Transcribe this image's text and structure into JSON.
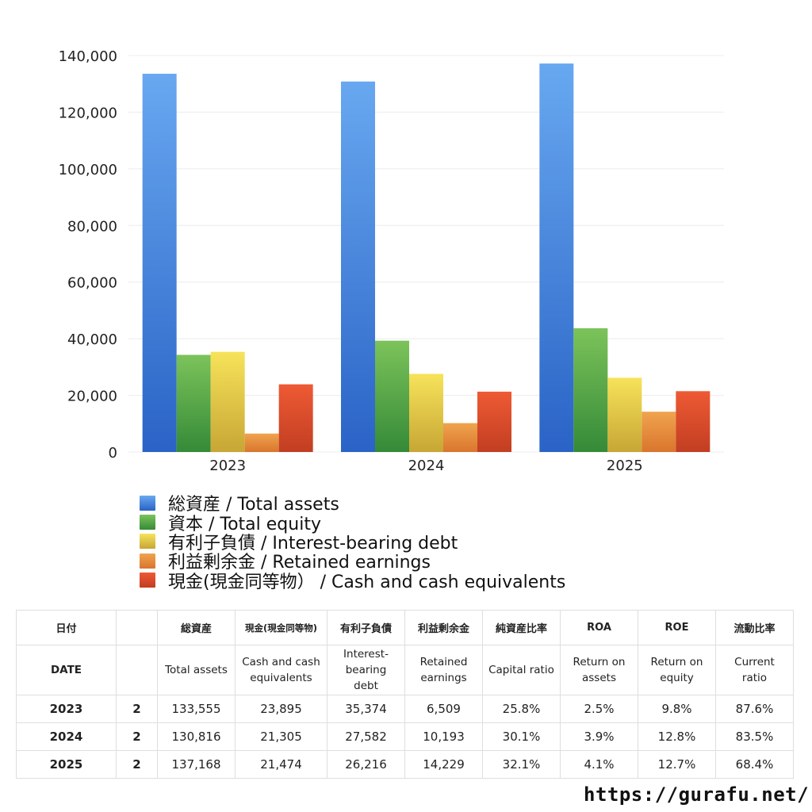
{
  "chart_data": {
    "type": "bar",
    "categories": [
      "2023",
      "2024",
      "2025"
    ],
    "ylim": [
      0,
      140000
    ],
    "yticks": [
      0,
      20000,
      40000,
      60000,
      80000,
      100000,
      120000,
      140000
    ],
    "ytick_labels": [
      "0",
      "20,000",
      "40,000",
      "60,000",
      "80,000",
      "100,000",
      "120,000",
      "140,000"
    ],
    "grid": true,
    "legend_position": "bottom",
    "series": [
      {
        "name": "総資産 / Total assets",
        "values": [
          133555,
          130816,
          137168
        ],
        "color": "#3f7fdc",
        "color_light": "#68a8f0",
        "color_dark": "#2a63c6"
      },
      {
        "name": "資本 / Total equity",
        "values": [
          34300,
          39300,
          43700
        ],
        "color": "#4ea84a",
        "color_light": "#7cc35a",
        "color_dark": "#358a38"
      },
      {
        "name": "有利子負債 / Interest-bearing debt",
        "values": [
          35374,
          27582,
          26216
        ],
        "color": "#e8c840",
        "color_light": "#f7e35a",
        "color_dark": "#c7a635"
      },
      {
        "name": "利益剰余金 / Retained earnings",
        "values": [
          6509,
          10193,
          14229
        ],
        "color": "#e68a3a",
        "color_light": "#f0a44e",
        "color_dark": "#d9752d"
      },
      {
        "name": "現金(現金同等物）  /  Cash and cash equivalents",
        "values": [
          23895,
          21305,
          21474
        ],
        "color": "#dc4a2a",
        "color_light": "#ee5a34",
        "color_dark": "#c23e22"
      }
    ]
  },
  "table": {
    "headers_jp": [
      "日付",
      "",
      "総資産",
      "現金(現金同等物)",
      "有利子負債",
      "利益剰余金",
      "純資産比率",
      "ROA",
      "ROE",
      "流動比率"
    ],
    "headers_en": [
      "DATE",
      "",
      "Total assets",
      "Cash and cash equivalents",
      "Interest-bearing debt",
      "Retained earnings",
      "Capital ratio",
      "Return on assets",
      "Return on equity",
      "Current ratio"
    ],
    "rows": [
      {
        "year": "2023",
        "q": "2",
        "total_assets": "133,555",
        "cash": "23,895",
        "debt": "35,374",
        "retained": "6,509",
        "capital_ratio": "25.8%",
        "roa": "2.5%",
        "roe": "9.8%",
        "current_ratio": "87.6%"
      },
      {
        "year": "2024",
        "q": "2",
        "total_assets": "130,816",
        "cash": "21,305",
        "debt": "27,582",
        "retained": "10,193",
        "capital_ratio": "30.1%",
        "roa": "3.9%",
        "roe": "12.8%",
        "current_ratio": "83.5%"
      },
      {
        "year": "2025",
        "q": "2",
        "total_assets": "137,168",
        "cash": "21,474",
        "debt": "26,216",
        "retained": "14,229",
        "capital_ratio": "32.1%",
        "roa": "4.1%",
        "roe": "12.7%",
        "current_ratio": "68.4%"
      }
    ]
  },
  "footer": {
    "site_url": "https://gurafu.net/"
  }
}
